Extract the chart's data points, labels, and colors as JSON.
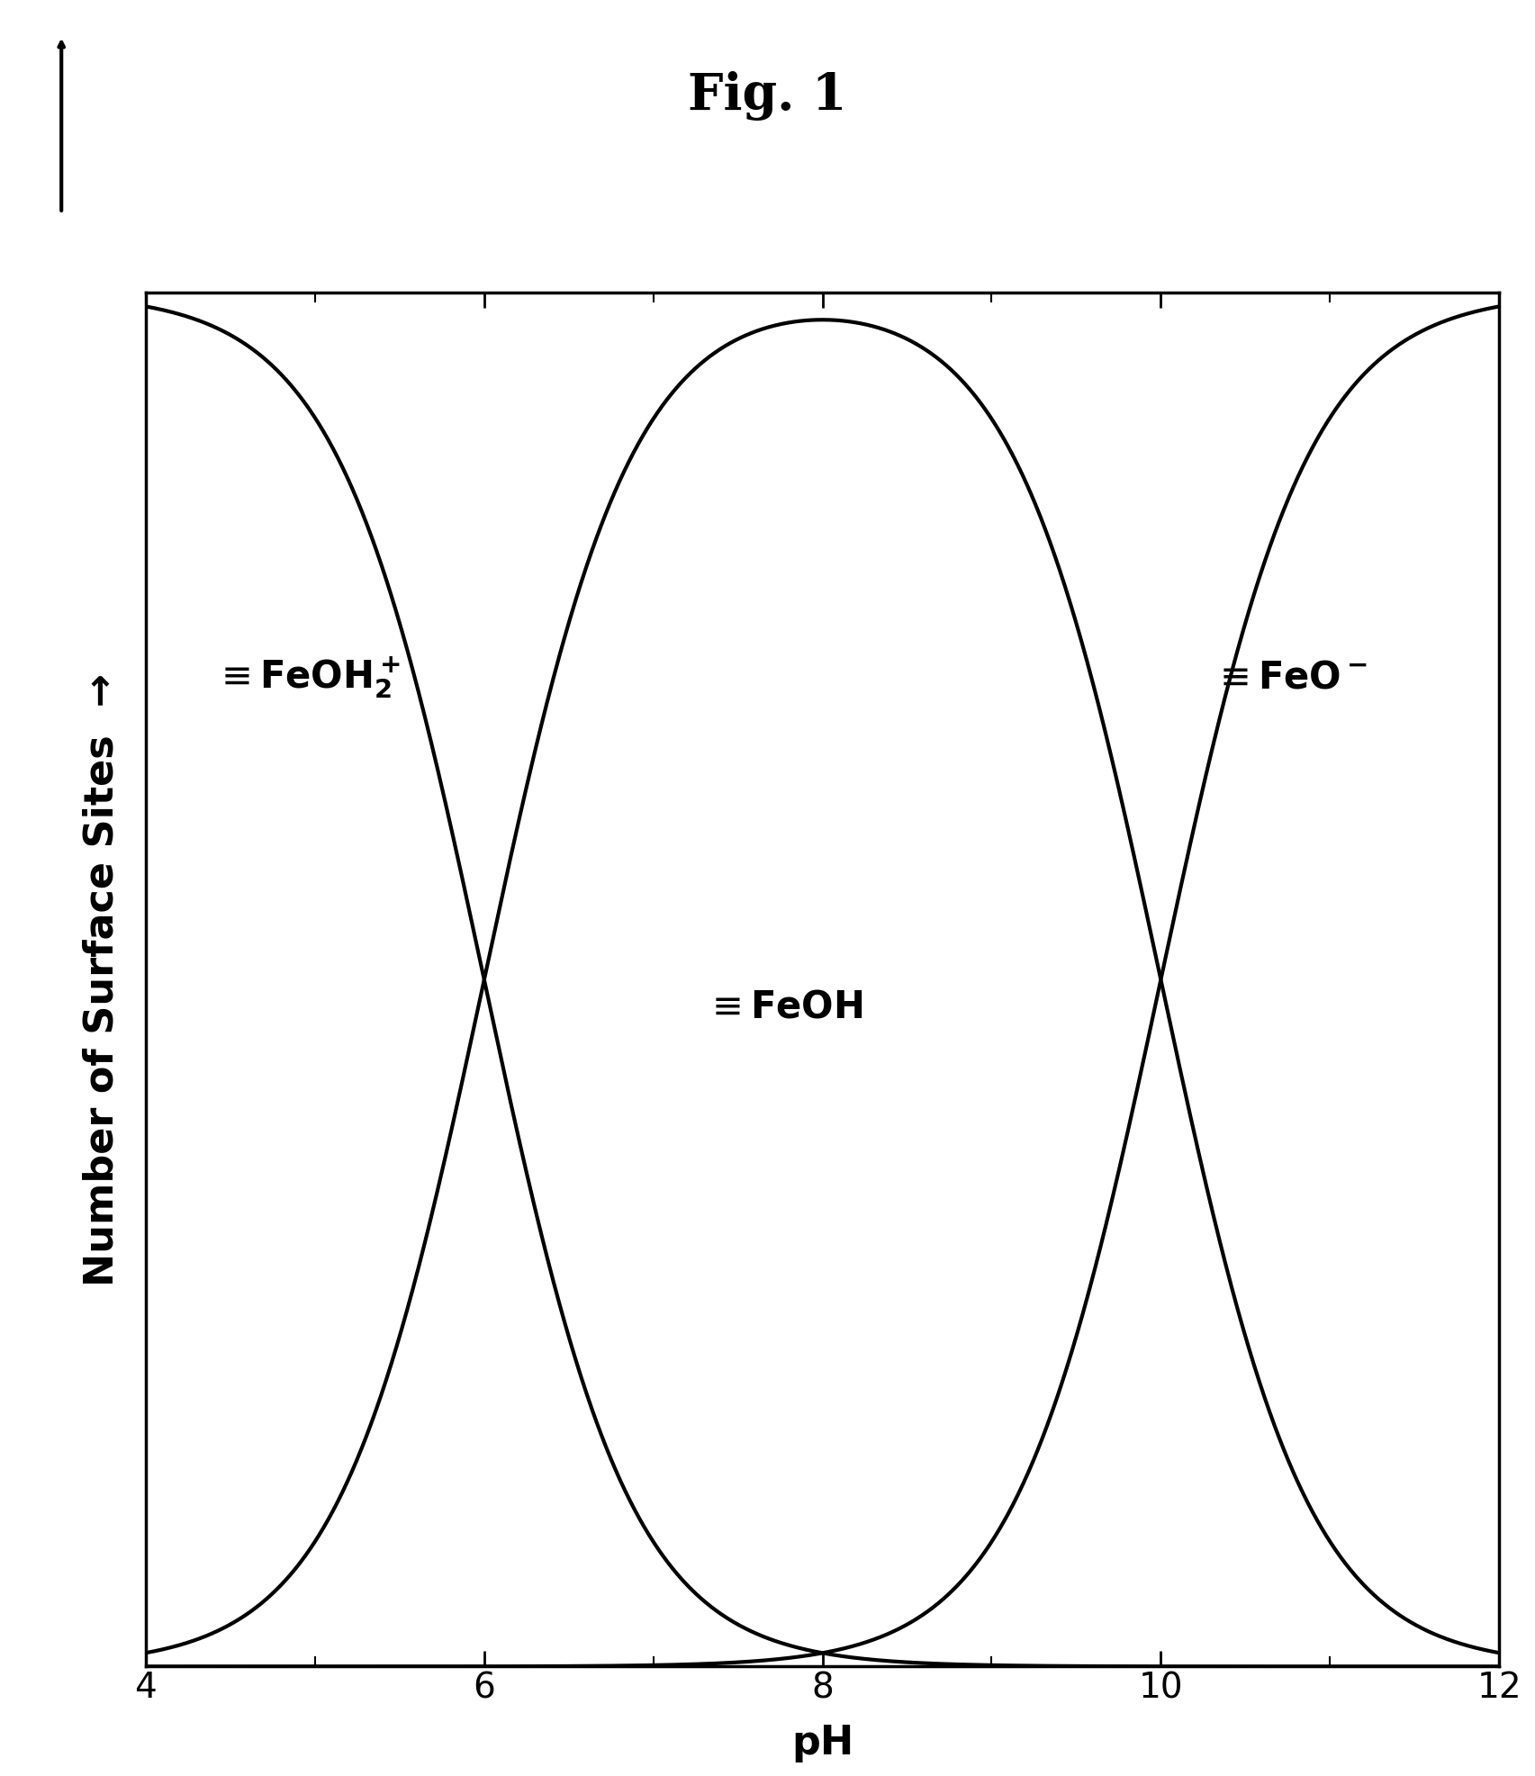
{
  "title": "Fig. 1",
  "xlabel": "pH",
  "ylabel": "Number of Surface Sites →",
  "xmin": 4,
  "xmax": 12,
  "ymin": 0,
  "ymax": 1,
  "pH_pzc1": 6.0,
  "pH_pzc2": 10.0,
  "line_color": "#000000",
  "line_width": 3.0,
  "background_color": "#ffffff",
  "label_FeOH2": "≡FeOH₂⁺",
  "label_FeOH": "≡FeOH",
  "label_FeO": "≡FeO⁻",
  "tick_fontsize": 28,
  "label_fontsize": 32,
  "title_fontsize": 40
}
